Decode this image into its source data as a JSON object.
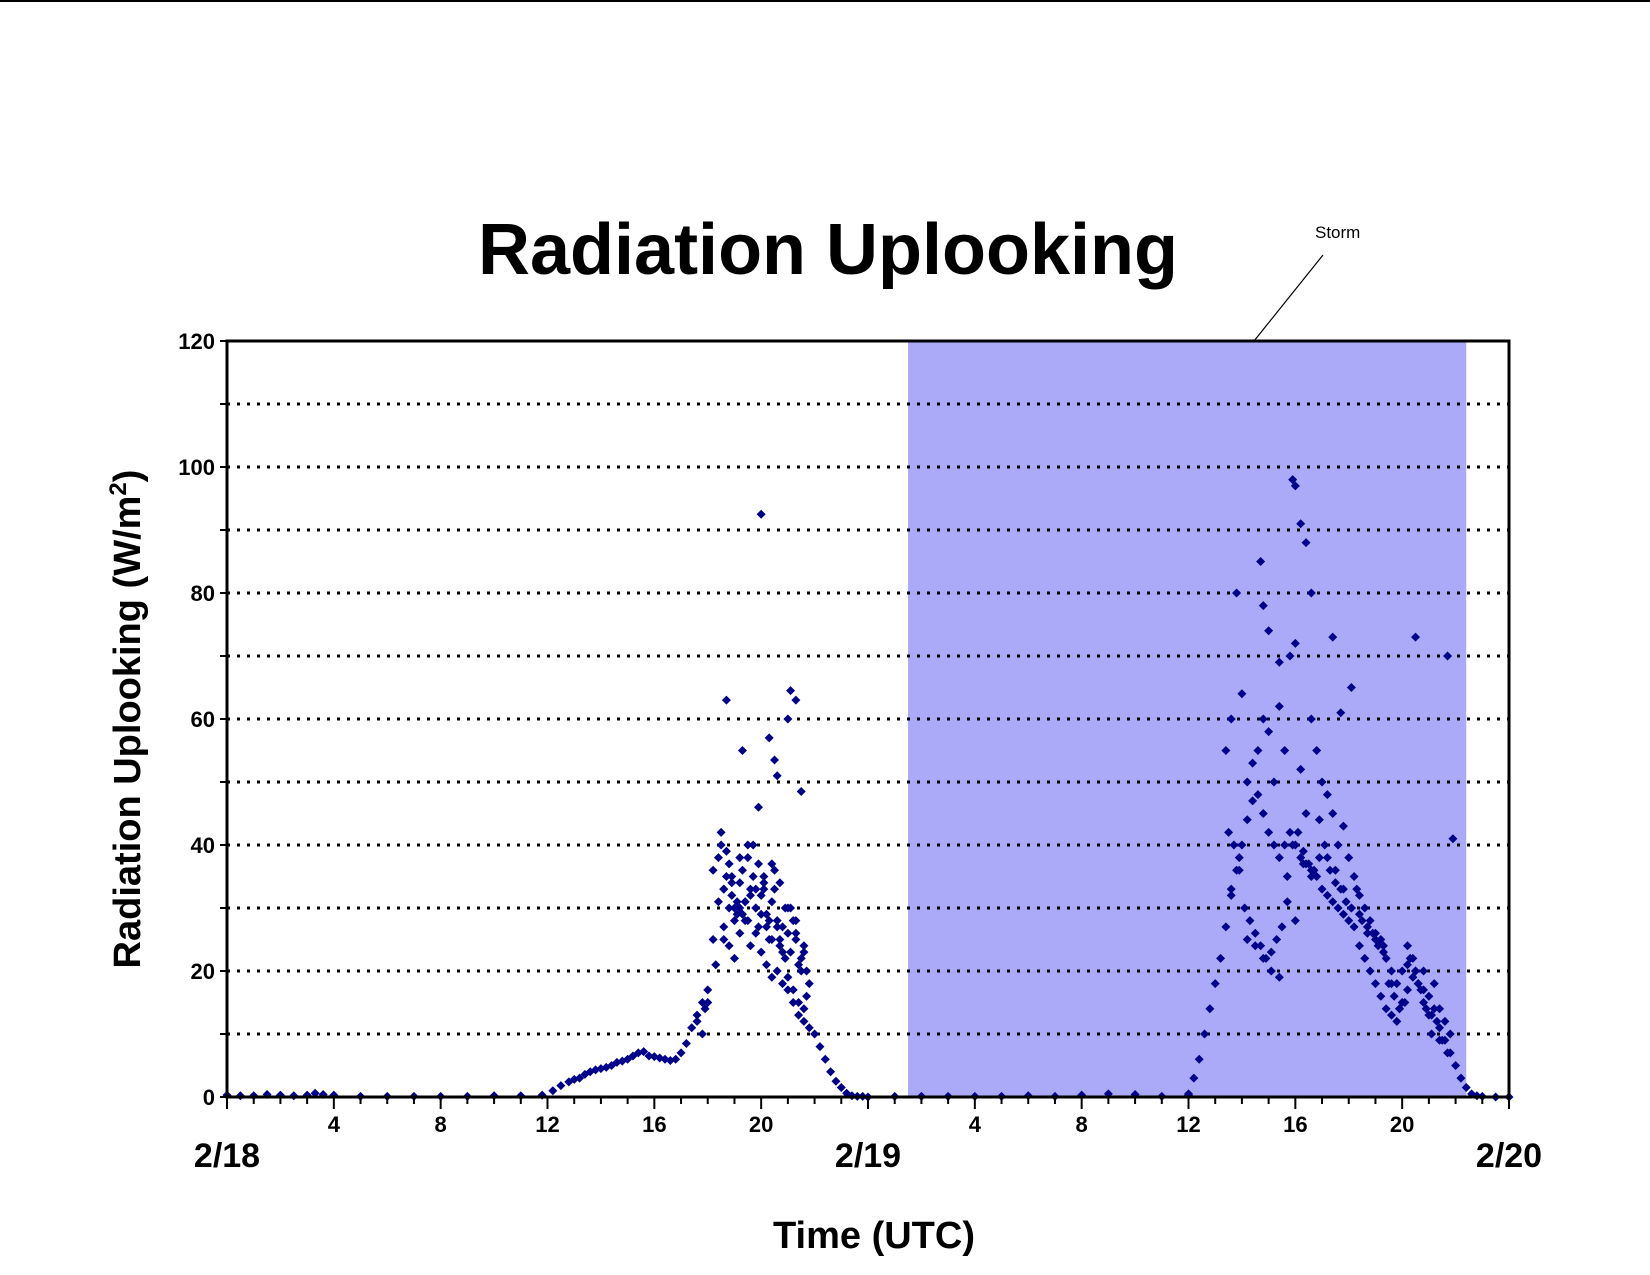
{
  "colors": {
    "marker": "#00008B",
    "storm_shade": "#AAAAF8",
    "axis": "#000000",
    "grid": "#000000"
  },
  "chart_data": {
    "type": "scatter",
    "title": "Radiation Uplooking",
    "xlabel": "Time (UTC)",
    "ylabel_main": "Radiation Uplooking (W/m",
    "ylabel_sup": "2",
    "ylabel_close": ")",
    "xlim_hours": [
      0,
      48
    ],
    "ylim": [
      0,
      120
    ],
    "y_ticks": [
      0,
      20,
      40,
      60,
      80,
      100,
      120
    ],
    "y_gridlines": [
      10,
      20,
      30,
      40,
      50,
      60,
      70,
      80,
      90,
      100,
      110
    ],
    "grid": "horizontal-dotted",
    "x_hour_ticks": [
      {
        "hour": 4,
        "label": "4"
      },
      {
        "hour": 8,
        "label": "8"
      },
      {
        "hour": 12,
        "label": "12"
      },
      {
        "hour": 16,
        "label": "16"
      },
      {
        "hour": 20,
        "label": "20"
      },
      {
        "hour": 28,
        "label": "4"
      },
      {
        "hour": 32,
        "label": "8"
      },
      {
        "hour": 36,
        "label": "12"
      },
      {
        "hour": 40,
        "label": "16"
      },
      {
        "hour": 44,
        "label": "20"
      }
    ],
    "x_date_labels": [
      {
        "hour": 0,
        "label": "2/18"
      },
      {
        "hour": 24,
        "label": "2/19"
      },
      {
        "hour": 48,
        "label": "2/20"
      }
    ],
    "storm_period_hours": [
      25.5,
      46.4
    ],
    "annotation": {
      "text": "Storm"
    },
    "series": [
      {
        "marker": "diamond",
        "x": [
          0.0,
          0.5,
          1.0,
          1.5,
          2.0,
          2.5,
          3.0,
          3.3,
          3.6,
          4.0,
          5,
          6,
          7,
          8,
          9,
          10,
          11,
          11.8,
          12.2,
          12.5,
          12.8,
          13.0,
          13.2,
          13.4,
          13.6,
          13.8,
          14.0,
          14.2,
          14.4,
          14.6,
          14.8,
          15.0,
          15.2,
          15.4,
          15.6,
          15.8,
          16.0,
          16.2,
          16.4,
          16.6,
          16.8,
          17.0,
          17.2,
          17.4,
          17.6,
          17.8,
          18.0,
          18.2,
          18.4,
          18.6,
          18.8,
          19.0,
          19.2,
          19.4,
          19.6,
          19.8,
          20.0,
          20.2,
          20.4,
          20.6,
          20.8,
          21.0,
          21.2,
          21.4,
          21.6,
          21.8,
          22.0,
          22.2,
          22.4,
          22.6,
          22.8,
          23.0,
          23.2,
          23.4,
          23.6,
          23.8,
          24.0,
          18.2,
          18.4,
          18.5,
          18.6,
          18.7,
          18.8,
          18.9,
          19.0,
          19.1,
          19.2,
          19.3,
          19.4,
          19.5,
          19.6,
          19.7,
          19.8,
          19.9,
          20.0,
          20.1,
          20.2,
          20.3,
          20.4,
          20.5,
          20.6,
          20.7,
          20.8,
          20.9,
          21.0,
          21.1,
          21.2,
          21.3,
          21.4,
          21.5,
          21.6,
          21.7,
          21.8,
          18.5,
          18.7,
          18.9,
          19.1,
          19.3,
          19.5,
          19.7,
          19.9,
          20.1,
          20.3,
          20.5,
          20.7,
          20.9,
          21.1,
          21.3,
          21.5,
          21.7,
          18.6,
          18.8,
          19.0,
          19.2,
          19.4,
          19.6,
          19.8,
          20.0,
          20.2,
          20.4,
          20.6,
          20.8,
          21.0,
          21.2,
          21.4,
          21.6,
          18.3,
          18.6,
          18.9,
          19.2,
          19.5,
          19.8,
          20.1,
          20.4,
          20.7,
          21.0,
          21.3,
          21.6,
          17.8,
          18.0,
          17.6,
          17.9,
          20.0,
          18.7,
          19.3,
          20.3,
          21.1,
          21.3,
          20.6,
          21.0,
          21.5,
          19.9,
          20.5,
          25,
          26,
          27,
          28,
          29,
          30,
          31,
          32,
          33,
          34,
          35,
          36,
          36.0,
          36.2,
          36.4,
          36.6,
          36.8,
          37.0,
          37.2,
          37.4,
          37.6,
          37.8,
          38.0,
          38.2,
          38.4,
          38.6,
          38.8,
          39.0,
          39.2,
          39.4,
          39.6,
          39.8,
          40.0,
          40.2,
          40.4,
          40.6,
          40.8,
          41.0,
          41.2,
          41.4,
          41.6,
          41.8,
          42.0,
          42.2,
          42.4,
          42.6,
          42.8,
          43.0,
          43.2,
          43.4,
          43.6,
          43.8,
          44.0,
          44.2,
          44.4,
          44.6,
          44.8,
          45.0,
          45.2,
          45.4,
          45.6,
          45.8,
          46.0,
          46.2,
          46.4,
          46.6,
          46.8,
          47.0,
          47.5,
          48.0,
          37.4,
          37.6,
          37.8,
          38.0,
          38.2,
          38.4,
          38.6,
          38.8,
          39.0,
          39.2,
          39.4,
          39.6,
          39.8,
          40.0,
          40.2,
          40.4,
          40.6,
          40.8,
          41.0,
          41.2,
          41.4,
          41.6,
          41.8,
          42.0,
          42.2,
          42.4,
          42.6,
          42.8,
          43.0,
          43.2,
          43.4,
          43.6,
          43.8,
          44.0,
          44.2,
          44.4,
          44.6,
          44.8,
          45.0,
          45.2,
          45.4,
          45.6,
          45.8,
          37.5,
          37.7,
          37.9,
          38.1,
          38.3,
          38.5,
          38.7,
          38.9,
          39.1,
          39.3,
          39.5,
          39.7,
          39.9,
          40.1,
          40.3,
          40.5,
          40.7,
          40.9,
          41.1,
          41.3,
          41.5,
          41.7,
          41.9,
          42.1,
          42.3,
          42.5,
          42.7,
          42.9,
          43.1,
          43.3,
          43.5,
          43.7,
          43.9,
          44.1,
          44.3,
          44.5,
          44.7,
          44.9,
          45.1,
          45.3,
          45.5,
          45.7,
          37.6,
          37.9,
          38.2,
          38.5,
          38.8,
          39.1,
          39.4,
          39.7,
          40.0,
          40.3,
          40.6,
          40.9,
          41.2,
          41.5,
          41.8,
          42.1,
          42.4,
          42.7,
          43.0,
          43.3,
          43.6,
          43.9,
          44.2,
          44.5,
          44.8,
          45.1,
          45.4,
          39.9,
          40.0,
          40.2,
          38.7,
          38.8,
          39.4,
          40.4,
          40.6,
          39.0,
          41.4,
          41.7,
          44.5,
          42.1,
          45.7,
          45.9
        ],
        "y": [
          0.3,
          0.2,
          0.2,
          0.4,
          0.3,
          0.2,
          0.3,
          0.6,
          0.4,
          0.3,
          0.1,
          0.1,
          0.1,
          0.1,
          0.1,
          0.2,
          0.2,
          0.3,
          1.0,
          1.8,
          2.4,
          2.8,
          3.0,
          3.6,
          4.0,
          4.3,
          4.5,
          4.7,
          5.0,
          5.5,
          5.7,
          6.0,
          6.5,
          7.0,
          7.2,
          6.5,
          6.4,
          6.2,
          6.0,
          5.8,
          6.0,
          7.0,
          8.5,
          11.0,
          13.0,
          15.0,
          17.0,
          25.0,
          31.0,
          33.0,
          30.0,
          28.0,
          30.0,
          31.0,
          32.0,
          30.0,
          29.0,
          27.0,
          25.0,
          20.0,
          18.0,
          17.0,
          15.0,
          13.0,
          12.0,
          11.0,
          10.0,
          8.0,
          6.0,
          4.0,
          2.5,
          1.5,
          0.6,
          0.2,
          0.1,
          0.1,
          0.0,
          36.0,
          38.0,
          40.0,
          33.0,
          35.0,
          37.0,
          32.0,
          30.0,
          29.0,
          34.0,
          36.0,
          31.0,
          28.0,
          33.0,
          35.0,
          30.0,
          27.0,
          32.0,
          34.0,
          29.0,
          25.0,
          31.0,
          33.0,
          28.0,
          24.0,
          27.0,
          30.0,
          26.0,
          23.0,
          28.0,
          25.0,
          21.0,
          22.0,
          24.0,
          20.0,
          18.0,
          42.0,
          39.0,
          35.0,
          31.0,
          29.0,
          38.0,
          40.0,
          37.0,
          33.0,
          28.0,
          36.0,
          25.0,
          22.0,
          30.0,
          26.0,
          20.0,
          16.0,
          27.0,
          24.0,
          22.0,
          26.0,
          28.0,
          24.0,
          26.0,
          23.0,
          21.0,
          19.0,
          27.0,
          23.0,
          19.0,
          17.0,
          15.0,
          14.0,
          21.0,
          25.0,
          34.0,
          38.0,
          40.0,
          33.0,
          35.0,
          37.0,
          34.0,
          30.0,
          28.0,
          23.0,
          10.0,
          15.0,
          12.0,
          14.0,
          92.5,
          63.0,
          55.0,
          57.0,
          64.5,
          63.0,
          51.0,
          60.0,
          48.5,
          46.0,
          53.5,
          0.1,
          0.1,
          0.1,
          0.1,
          0.1,
          0.2,
          0.1,
          0.3,
          0.5,
          0.4,
          0.1,
          0.3,
          0.5,
          3.0,
          6.0,
          10.0,
          14.0,
          18.0,
          22.0,
          27.0,
          32.0,
          36.0,
          40.0,
          44.0,
          47.0,
          48.0,
          45.0,
          42.0,
          40.0,
          38.0,
          40.0,
          42.0,
          40.0,
          38.0,
          37.0,
          36.0,
          35.0,
          33.0,
          32.0,
          31.0,
          30.0,
          29.0,
          28.0,
          27.0,
          24.0,
          22.0,
          20.0,
          18.0,
          16.0,
          14.0,
          13.0,
          12.0,
          15.0,
          17.0,
          19.0,
          18.0,
          15.0,
          13.0,
          14.0,
          11.0,
          9.0,
          7.0,
          5.0,
          3.0,
          1.5,
          0.5,
          0.2,
          0.1,
          0.0,
          0.0,
          55.0,
          60.0,
          80.0,
          64.0,
          50.0,
          53.0,
          55.0,
          60.0,
          58.0,
          50.0,
          62.0,
          55.0,
          70.0,
          72.0,
          52.0,
          45.0,
          60.0,
          55.0,
          50.0,
          48.0,
          45.0,
          40.0,
          43.0,
          38.0,
          35.0,
          32.0,
          30.0,
          28.0,
          26.0,
          25.0,
          22.0,
          20.0,
          18.0,
          20.0,
          24.0,
          22.0,
          18.0,
          20.0,
          16.0,
          18.0,
          14.0,
          12.0,
          10.0,
          42.0,
          40.0,
          38.0,
          30.0,
          28.0,
          26.0,
          24.0,
          22.0,
          23.0,
          25.0,
          27.0,
          35.0,
          40.0,
          42.0,
          39.0,
          37.0,
          36.0,
          38.0,
          40.0,
          36.0,
          34.0,
          33.0,
          31.0,
          30.0,
          33.0,
          28.0,
          27.0,
          26.0,
          24.0,
          23.0,
          18.0,
          16.0,
          14.0,
          15.0,
          22.0,
          20.0,
          17.0,
          14.0,
          10.0,
          12.0,
          9.0,
          7.0,
          33.0,
          36.0,
          25.0,
          24.0,
          22.0,
          20.0,
          19.0,
          31.0,
          28.0,
          37.0,
          35.0,
          44.0,
          38.0,
          36.0,
          33.0,
          30.0,
          29.0,
          26.0,
          25.0,
          24.0,
          18.0,
          14.0,
          21.0,
          20.0,
          17.0,
          13.0,
          9.0,
          98.0,
          97.0,
          91.0,
          85.0,
          78.0,
          69.0,
          88.0,
          80.0,
          74.0,
          73.0,
          61.0,
          73.0,
          65.0,
          70.0,
          41.0
        ]
      }
    ]
  }
}
